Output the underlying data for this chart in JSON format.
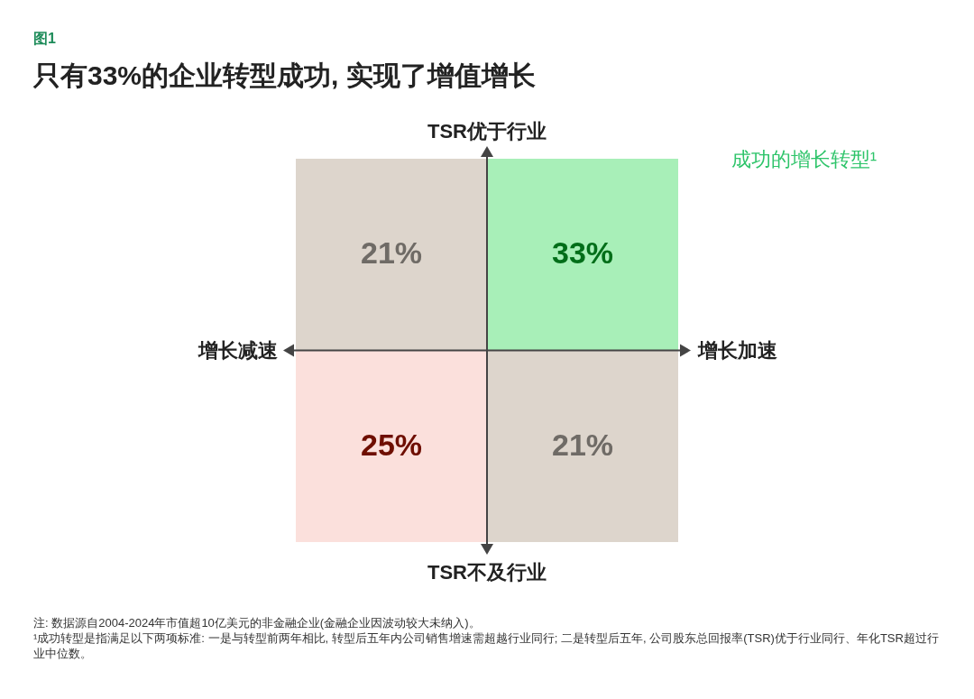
{
  "chart_data": {
    "type": "heatmap",
    "title": "只有33%的企业转型成功, 实现了增值增长",
    "categories": [
      "增长减速",
      "增长加速"
    ],
    "y_categories": [
      "TSR优于行业",
      "TSR不及行业"
    ],
    "cells": [
      [
        21,
        33
      ],
      [
        25,
        21
      ]
    ],
    "cell_labels": [
      [
        "21%",
        "33%"
      ],
      [
        "25%",
        "21%"
      ]
    ],
    "colors": [
      "#ddd5cc",
      "#a8efb8",
      "#fbe0dc",
      "#ddd5cc"
    ],
    "annotations": [
      "图1",
      "成功的增长转型¹",
      "注: 数据源自2004-2024年市值超10亿美元的非金融企业(金融企业因波动较大未纳入)。",
      "¹成功转型是指满足以下两项标准: 一是与转型前两年相比, 转型后五年内公司销售增速需超越行业同行; 二是转型后五年, 公司股东总回报率(TSR)优于行业同行、年化TSR超过行业中位数。"
    ]
  }
}
